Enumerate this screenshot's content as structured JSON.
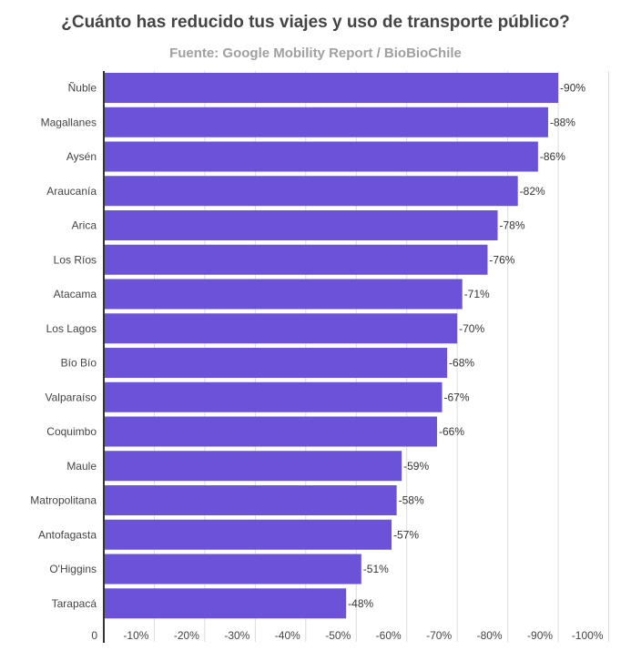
{
  "chart_data": {
    "type": "bar",
    "orientation": "horizontal",
    "title": "¿Cuánto has reducido tus viajes y uso de transporte público?",
    "subtitle": "Fuente: Google Mobility Report / BioBioChile",
    "categories": [
      "Ñuble",
      "Magallanes",
      "Aysén",
      "Araucanía",
      "Arica",
      "Los Ríos",
      "Atacama",
      "Los Lagos",
      "Bío Bío",
      "Valparaíso",
      "Coquimbo",
      "Maule",
      "Matropolitana",
      "Antofagasta",
      "O'Higgins",
      "Tarapacá"
    ],
    "values": [
      -90,
      -88,
      -86,
      -82,
      -78,
      -76,
      -71,
      -70,
      -68,
      -67,
      -66,
      -59,
      -58,
      -57,
      -51,
      -48
    ],
    "data_labels": [
      "-90%",
      "-88%",
      "-86%",
      "-82%",
      "-78%",
      "-76%",
      "-71%",
      "-70%",
      "-68%",
      "-67%",
      "-66%",
      "-59%",
      "-58%",
      "-57%",
      "-51%",
      "-48%"
    ],
    "xlim": [
      0,
      -100
    ],
    "x_ticks": [
      0,
      -10,
      -20,
      -30,
      -40,
      -50,
      -60,
      -70,
      -80,
      -90,
      -100
    ],
    "x_tick_labels": [
      "0",
      "-10%",
      "-20%",
      "-30%",
      "-40%",
      "-50%",
      "-60%",
      "-70%",
      "-80%",
      "-90%",
      "-100%"
    ],
    "xlabel": "",
    "ylabel": "",
    "grid": true,
    "bar_color": "#6b52d9"
  }
}
